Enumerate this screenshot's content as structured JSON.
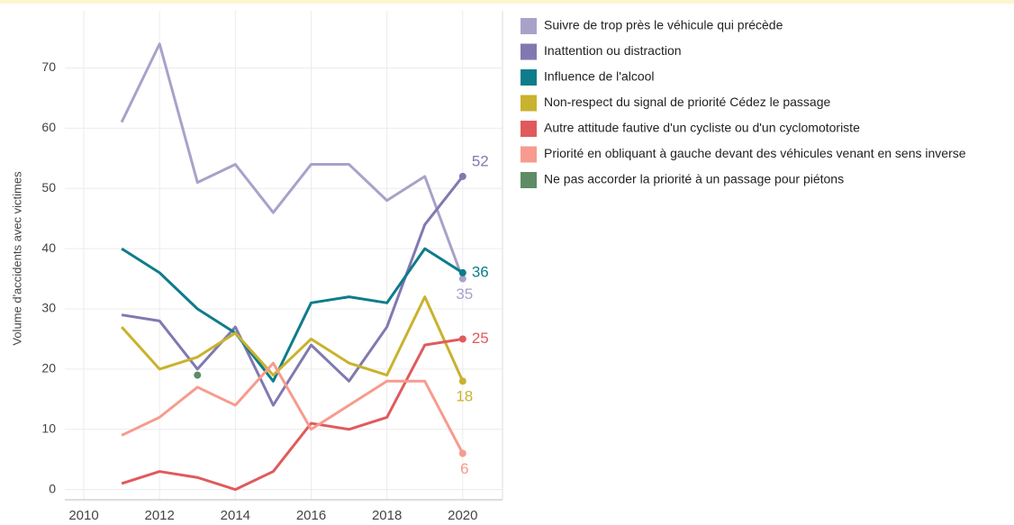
{
  "chart_data": {
    "type": "line",
    "y_label": "Volume d'accidents avec victimes",
    "x": [
      2011,
      2012,
      2013,
      2014,
      2015,
      2016,
      2017,
      2018,
      2019,
      2020
    ],
    "series": [
      {
        "name": "Suivre de trop près le véhicule qui précède",
        "color": "#a8a2c9",
        "values": [
          61,
          74,
          51,
          54,
          46,
          54,
          54,
          48,
          52,
          35
        ]
      },
      {
        "name": "Inattention ou distraction",
        "color": "#8079b0",
        "values": [
          29,
          28,
          20,
          27,
          14,
          24,
          18,
          27,
          44,
          52
        ]
      },
      {
        "name": "Influence de l'alcool",
        "color": "#0e7c8a",
        "values": [
          40,
          36,
          30,
          26,
          18,
          31,
          32,
          31,
          40,
          36
        ]
      },
      {
        "name": "Non-respect du signal de priorité Cédez le passage",
        "color": "#c9b22e",
        "values": [
          27,
          20,
          22,
          26,
          19,
          25,
          21,
          19,
          32,
          18
        ]
      },
      {
        "name": "Autre attitude fautive d'un cycliste ou d'un cyclomotoriste",
        "color": "#e05a5c",
        "values": [
          1,
          3,
          2,
          0,
          3,
          11,
          10,
          12,
          24,
          25
        ]
      },
      {
        "name": "Priorité en obliquant à gauche devant des véhicules venant en sens inverse",
        "color": "#f79b8e",
        "values": [
          9,
          12,
          17,
          14,
          21,
          10,
          14,
          18,
          18,
          6
        ]
      },
      {
        "name": "Ne pas accorder la priorité à un passage pour piétons",
        "color": "#5e8c64",
        "values": [
          null,
          null,
          19,
          null,
          null,
          null,
          null,
          null,
          null,
          null
        ]
      }
    ],
    "xlim": [
      2009.5,
      2021.05
    ],
    "xticks": [
      2010,
      2012,
      2014,
      2016,
      2018,
      2020
    ],
    "ylim": [
      -1.7,
      79.5
    ],
    "yticks": [
      0,
      10,
      20,
      30,
      40,
      50,
      60,
      70
    ],
    "grid": true,
    "legend": "right"
  }
}
